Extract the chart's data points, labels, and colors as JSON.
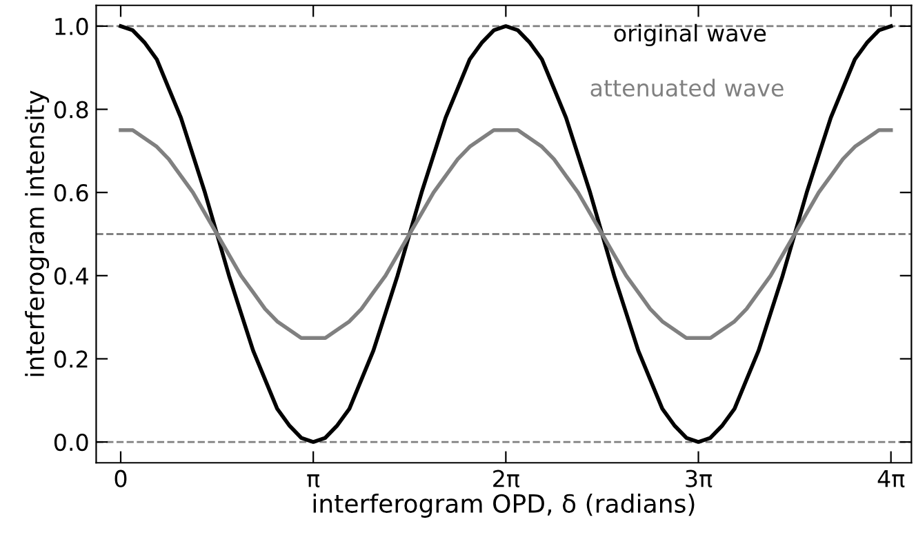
{
  "chart_data": {
    "type": "line",
    "xlabel": "interferogram OPD, δ (radians)",
    "ylabel": "interferogram intensity",
    "x": [
      0,
      0.196,
      0.393,
      0.589,
      0.785,
      0.982,
      1.178,
      1.374,
      1.571,
      1.767,
      1.963,
      2.16,
      2.356,
      2.553,
      2.749,
      2.945,
      3.142,
      3.338,
      3.534,
      3.731,
      3.927,
      4.123,
      4.32,
      4.516,
      4.712,
      4.909,
      5.105,
      5.301,
      5.498,
      5.694,
      5.89,
      6.087,
      6.283,
      6.48,
      6.676,
      6.872,
      7.069,
      7.265,
      7.461,
      7.658,
      7.854,
      8.05,
      8.247,
      8.443,
      8.639,
      8.836,
      9.032,
      9.228,
      9.425,
      9.621,
      9.817,
      10.014,
      10.21,
      10.407,
      10.603,
      10.799,
      10.996,
      11.192,
      11.388,
      11.585,
      11.781,
      11.977,
      12.174,
      12.37,
      12.566
    ],
    "series": [
      {
        "name": "original wave",
        "color": "#000000",
        "values": [
          1,
          0.99,
          0.96,
          0.92,
          0.85,
          0.78,
          0.69,
          0.6,
          0.5,
          0.4,
          0.31,
          0.22,
          0.15,
          0.08,
          0.04,
          0.01,
          0,
          0.01,
          0.04,
          0.08,
          0.15,
          0.22,
          0.31,
          0.4,
          0.5,
          0.6,
          0.69,
          0.78,
          0.85,
          0.92,
          0.96,
          0.99,
          1,
          0.99,
          0.96,
          0.92,
          0.85,
          0.78,
          0.69,
          0.6,
          0.5,
          0.4,
          0.31,
          0.22,
          0.15,
          0.08,
          0.04,
          0.01,
          0,
          0.01,
          0.04,
          0.08,
          0.15,
          0.22,
          0.31,
          0.4,
          0.5,
          0.6,
          0.69,
          0.78,
          0.85,
          0.92,
          0.96,
          0.99,
          1
        ]
      },
      {
        "name": "attenuated wave",
        "color": "#808080",
        "values": [
          0.75,
          0.75,
          0.73,
          0.71,
          0.68,
          0.64,
          0.6,
          0.55,
          0.5,
          0.45,
          0.4,
          0.36,
          0.32,
          0.29,
          0.27,
          0.25,
          0.25,
          0.25,
          0.27,
          0.29,
          0.32,
          0.36,
          0.4,
          0.45,
          0.5,
          0.55,
          0.6,
          0.64,
          0.68,
          0.71,
          0.73,
          0.75,
          0.75,
          0.75,
          0.73,
          0.71,
          0.68,
          0.64,
          0.6,
          0.55,
          0.5,
          0.45,
          0.4,
          0.36,
          0.32,
          0.29,
          0.27,
          0.25,
          0.25,
          0.25,
          0.27,
          0.29,
          0.32,
          0.36,
          0.4,
          0.45,
          0.5,
          0.55,
          0.6,
          0.64,
          0.68,
          0.71,
          0.73,
          0.75,
          0.75
        ]
      }
    ],
    "xlim": [
      -0.4,
      12.9
    ],
    "ylim": [
      -0.05,
      1.05
    ],
    "xticks": [
      0,
      {
        "value": 3.1416,
        "label": "π"
      },
      {
        "value": 6.2832,
        "label": "2π"
      },
      {
        "value": 9.4248,
        "label": "3π"
      },
      {
        "value": 12.566,
        "label": "4π"
      }
    ],
    "yticks": [
      {
        "value": 0,
        "label": "0.0"
      },
      {
        "value": 0.2,
        "label": "0.2"
      },
      {
        "value": 0.4,
        "label": "0.4"
      },
      {
        "value": 0.6,
        "label": "0.6"
      },
      {
        "value": 0.8,
        "label": "0.8"
      },
      {
        "value": 1,
        "label": "1.0"
      }
    ],
    "ref_lines": [
      {
        "axis": "y",
        "value": 0,
        "color": "#808080",
        "line_style": "dashed"
      },
      {
        "axis": "y",
        "value": 0.5,
        "color": "#808080",
        "line_style": "dashed"
      },
      {
        "axis": "y",
        "value": 1,
        "color": "#808080",
        "line_style": "dashed"
      }
    ],
    "grid": false,
    "legend": "top right",
    "marker": "none",
    "line_style": "solid"
  }
}
